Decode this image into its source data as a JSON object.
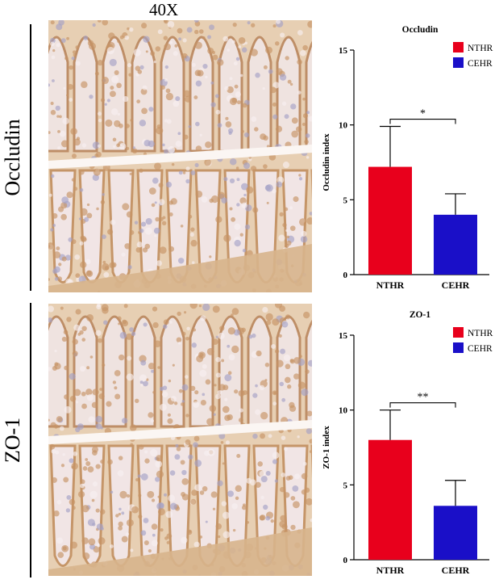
{
  "figure": {
    "magnification_label": "40X",
    "rows": [
      {
        "label": "Occludin"
      },
      {
        "label": "ZO-1"
      }
    ]
  },
  "colors": {
    "NTHR": "#e8001c",
    "CEHR": "#1a0fc8",
    "stain_dab": "#c99a6a",
    "stain_counter": "#ece2e6"
  },
  "chart_data": [
    {
      "type": "bar",
      "title": "Occludin",
      "ylabel": "Occludin index",
      "xlabel": "",
      "categories": [
        "NTHR",
        "CEHR"
      ],
      "values": [
        7.2,
        4.0
      ],
      "error": [
        2.7,
        1.4
      ],
      "ylim": [
        0,
        15
      ],
      "yticks": [
        0,
        5,
        10,
        15
      ],
      "significance": "*",
      "legend": [
        "NTHR",
        "CEHR"
      ],
      "legend_position": "top-right",
      "grid": false
    },
    {
      "type": "bar",
      "title": "ZO-1",
      "ylabel": "ZO-1 index",
      "xlabel": "",
      "categories": [
        "NTHR",
        "CEHR"
      ],
      "values": [
        8.0,
        3.6
      ],
      "error": [
        2.0,
        1.7
      ],
      "ylim": [
        0,
        15
      ],
      "yticks": [
        0,
        5,
        10,
        15
      ],
      "significance": "**",
      "legend": [
        "NTHR",
        "CEHR"
      ],
      "legend_position": "top-right",
      "grid": false
    }
  ]
}
